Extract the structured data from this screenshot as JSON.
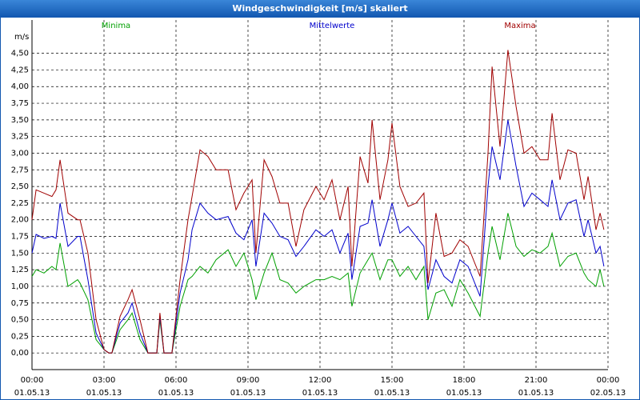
{
  "chart_data": {
    "type": "line",
    "title": "Windgeschwindigkeit [m/s] skaliert",
    "y_label": "m/s",
    "x": [
      0,
      0.17,
      0.5,
      0.83,
      1.0,
      1.17,
      1.5,
      1.9,
      2.0,
      2.33,
      2.67,
      3.0,
      3.2,
      3.33,
      3.67,
      4.0,
      4.17,
      4.5,
      4.83,
      5.2,
      5.33,
      5.5,
      5.83,
      6.17,
      6.5,
      6.67,
      7.0,
      7.33,
      7.67,
      8.17,
      8.5,
      8.83,
      9.17,
      9.33,
      9.67,
      10.0,
      10.33,
      10.67,
      11.0,
      11.33,
      11.83,
      12.17,
      12.5,
      12.83,
      13.17,
      13.33,
      13.67,
      14.0,
      14.17,
      14.5,
      14.83,
      15.0,
      15.33,
      15.67,
      16.0,
      16.33,
      16.5,
      16.83,
      17.17,
      17.5,
      17.83,
      18.17,
      18.67,
      19.0,
      19.17,
      19.5,
      19.83,
      20.17,
      20.5,
      20.83,
      21.17,
      21.5,
      21.67,
      22.0,
      22.33,
      22.67,
      23.0,
      23.17,
      23.5,
      23.67,
      23.83
    ],
    "series": [
      {
        "name": "Minima",
        "color": "#00a000",
        "values": [
          1.15,
          1.25,
          1.2,
          1.3,
          1.25,
          1.65,
          1.0,
          1.1,
          1.05,
          0.8,
          0.2,
          0.05,
          0,
          0,
          0.35,
          0.5,
          0.6,
          0.2,
          0,
          0,
          0.5,
          0,
          0,
          0.7,
          1.1,
          1.15,
          1.3,
          1.2,
          1.4,
          1.55,
          1.3,
          1.5,
          1.1,
          0.8,
          1.2,
          1.5,
          1.1,
          1.05,
          0.9,
          1.0,
          1.1,
          1.1,
          1.15,
          1.1,
          1.2,
          0.7,
          1.2,
          1.4,
          1.5,
          1.1,
          1.4,
          1.4,
          1.15,
          1.3,
          1.1,
          1.3,
          0.5,
          0.9,
          0.95,
          0.7,
          1.1,
          0.9,
          0.55,
          1.5,
          1.9,
          1.4,
          2.1,
          1.6,
          1.45,
          1.55,
          1.5,
          1.6,
          1.8,
          1.3,
          1.45,
          1.5,
          1.2,
          1.1,
          1.0,
          1.25,
          1.0
        ]
      },
      {
        "name": "Mittelwerte",
        "color": "#0000cc",
        "values": [
          1.5,
          1.78,
          1.72,
          1.75,
          1.72,
          2.25,
          1.6,
          1.75,
          1.75,
          1.1,
          0.3,
          0.05,
          0,
          0,
          0.45,
          0.6,
          0.75,
          0.3,
          0,
          0,
          0.55,
          0,
          0,
          0.9,
          1.4,
          1.85,
          2.25,
          2.1,
          2.0,
          2.05,
          1.8,
          1.7,
          2.0,
          1.3,
          2.1,
          1.95,
          1.75,
          1.7,
          1.45,
          1.6,
          1.85,
          1.75,
          1.85,
          1.5,
          1.8,
          1.1,
          1.9,
          1.95,
          2.3,
          1.6,
          2.0,
          2.25,
          1.8,
          1.9,
          1.75,
          1.6,
          0.95,
          1.4,
          1.15,
          1.05,
          1.4,
          1.3,
          0.85,
          2.5,
          3.1,
          2.6,
          3.5,
          2.8,
          2.2,
          2.4,
          2.3,
          2.2,
          2.6,
          2.0,
          2.25,
          2.3,
          1.75,
          2.0,
          1.5,
          1.6,
          1.3
        ]
      },
      {
        "name": "Maxima",
        "color": "#a00000",
        "values": [
          2.0,
          2.45,
          2.4,
          2.35,
          2.45,
          2.9,
          2.1,
          2.0,
          2.0,
          1.5,
          0.5,
          0.05,
          0,
          0,
          0.55,
          0.8,
          0.95,
          0.5,
          0,
          0,
          0.6,
          0,
          0,
          1.1,
          2.0,
          2.35,
          3.05,
          2.95,
          2.75,
          2.75,
          2.15,
          2.4,
          2.6,
          1.5,
          2.9,
          2.65,
          2.25,
          2.25,
          1.6,
          2.15,
          2.5,
          2.3,
          2.6,
          2.0,
          2.5,
          1.3,
          2.95,
          2.55,
          3.5,
          2.3,
          2.9,
          3.45,
          2.5,
          2.2,
          2.25,
          2.4,
          1.05,
          2.1,
          1.45,
          1.5,
          1.7,
          1.6,
          1.15,
          3.0,
          4.3,
          3.1,
          4.55,
          3.7,
          3.0,
          3.1,
          2.9,
          2.9,
          3.6,
          2.6,
          3.05,
          3.0,
          2.3,
          2.65,
          1.85,
          2.1,
          1.85
        ]
      }
    ],
    "xlim": [
      0,
      24
    ],
    "xticks": [
      {
        "value": 0,
        "label": "00:00",
        "date": "01.05.13"
      },
      {
        "value": 3,
        "label": "03:00",
        "date": "01.05.13"
      },
      {
        "value": 6,
        "label": "06:00",
        "date": "01.05.13"
      },
      {
        "value": 9,
        "label": "09:00",
        "date": "01.05.13"
      },
      {
        "value": 12,
        "label": "12:00",
        "date": "01.05.13"
      },
      {
        "value": 15,
        "label": "15:00",
        "date": "01.05.13"
      },
      {
        "value": 18,
        "label": "18:00",
        "date": "01.05.13"
      },
      {
        "value": 21,
        "label": "21:00",
        "date": "01.05.13"
      },
      {
        "value": 24,
        "label": "00:00",
        "date": "02.05.13"
      }
    ],
    "ylim": [
      -0.25,
      5.0
    ],
    "yticks": [
      {
        "value": 0,
        "label": "0,00"
      },
      {
        "value": 0.25,
        "label": "0,25"
      },
      {
        "value": 0.5,
        "label": "0,50"
      },
      {
        "value": 0.75,
        "label": "0,75"
      },
      {
        "value": 1,
        "label": "1,00"
      },
      {
        "value": 1.25,
        "label": "1,25"
      },
      {
        "value": 1.5,
        "label": "1,50"
      },
      {
        "value": 1.75,
        "label": "1,75"
      },
      {
        "value": 2,
        "label": "2,00"
      },
      {
        "value": 2.25,
        "label": "2,25"
      },
      {
        "value": 2.5,
        "label": "2,50"
      },
      {
        "value": 2.75,
        "label": "2,75"
      },
      {
        "value": 3,
        "label": "3,00"
      },
      {
        "value": 3.25,
        "label": "3,25"
      },
      {
        "value": 3.5,
        "label": "3,50"
      },
      {
        "value": 3.75,
        "label": "3,75"
      },
      {
        "value": 4,
        "label": "4,00"
      },
      {
        "value": 4.25,
        "label": "4,25"
      },
      {
        "value": 4.5,
        "label": "4,50"
      }
    ],
    "grid": true
  }
}
